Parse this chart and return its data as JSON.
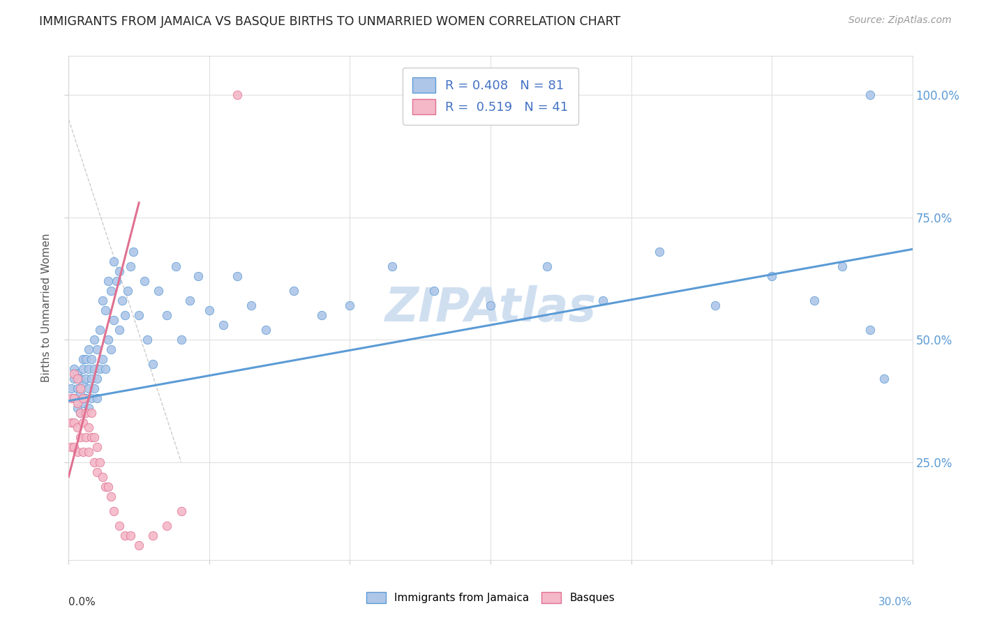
{
  "title": "IMMIGRANTS FROM JAMAICA VS BASQUE BIRTHS TO UNMARRIED WOMEN CORRELATION CHART",
  "source": "Source: ZipAtlas.com",
  "ylabel": "Births to Unmarried Women",
  "legend1_R": "0.408",
  "legend1_N": "81",
  "legend2_R": "0.519",
  "legend2_N": "41",
  "blue_scatter_color": "#aec6e8",
  "blue_edge_color": "#5b9bd5",
  "pink_scatter_color": "#f4b8c8",
  "pink_edge_color": "#e07090",
  "blue_line_color": "#5b9bd5",
  "pink_line_color": "#e07090",
  "legend_text_color": "#4472c4",
  "watermark_color": "#d0dff0",
  "right_tick_color": "#5b9bd5",
  "xlim": [
    0,
    0.3
  ],
  "ylim": [
    0.05,
    1.08
  ],
  "xticks": [
    0.0,
    0.05,
    0.1,
    0.15,
    0.2,
    0.25,
    0.3
  ],
  "yticks": [
    0.25,
    0.5,
    0.75,
    1.0
  ],
  "blue_trend_x0": 0.0,
  "blue_trend_y0": 0.375,
  "blue_trend_x1": 0.3,
  "blue_trend_y1": 0.685,
  "pink_trend_x0": 0.0,
  "pink_trend_y0": 0.22,
  "pink_trend_x1": 0.025,
  "pink_trend_y1": 0.78,
  "blue_x": [
    0.001,
    0.002,
    0.002,
    0.002,
    0.003,
    0.003,
    0.003,
    0.004,
    0.004,
    0.004,
    0.005,
    0.005,
    0.005,
    0.005,
    0.006,
    0.006,
    0.006,
    0.007,
    0.007,
    0.007,
    0.007,
    0.008,
    0.008,
    0.008,
    0.009,
    0.009,
    0.009,
    0.01,
    0.01,
    0.01,
    0.011,
    0.011,
    0.012,
    0.012,
    0.013,
    0.013,
    0.014,
    0.014,
    0.015,
    0.015,
    0.016,
    0.016,
    0.017,
    0.018,
    0.018,
    0.019,
    0.02,
    0.021,
    0.022,
    0.023,
    0.025,
    0.027,
    0.028,
    0.03,
    0.032,
    0.035,
    0.038,
    0.04,
    0.043,
    0.046,
    0.05,
    0.055,
    0.06,
    0.065,
    0.07,
    0.08,
    0.09,
    0.1,
    0.115,
    0.13,
    0.15,
    0.17,
    0.19,
    0.21,
    0.23,
    0.25,
    0.265,
    0.275,
    0.285,
    0.29,
    0.285
  ],
  "blue_y": [
    0.4,
    0.38,
    0.42,
    0.44,
    0.36,
    0.4,
    0.43,
    0.35,
    0.39,
    0.42,
    0.37,
    0.41,
    0.44,
    0.46,
    0.38,
    0.42,
    0.46,
    0.36,
    0.4,
    0.44,
    0.48,
    0.38,
    0.42,
    0.46,
    0.4,
    0.44,
    0.5,
    0.38,
    0.42,
    0.48,
    0.44,
    0.52,
    0.46,
    0.58,
    0.44,
    0.56,
    0.5,
    0.62,
    0.48,
    0.6,
    0.54,
    0.66,
    0.62,
    0.52,
    0.64,
    0.58,
    0.55,
    0.6,
    0.65,
    0.68,
    0.55,
    0.62,
    0.5,
    0.45,
    0.6,
    0.55,
    0.65,
    0.5,
    0.58,
    0.63,
    0.56,
    0.53,
    0.63,
    0.57,
    0.52,
    0.6,
    0.55,
    0.57,
    0.65,
    0.6,
    0.57,
    0.65,
    0.58,
    0.68,
    0.57,
    0.63,
    0.58,
    0.65,
    0.52,
    0.42,
    1.0
  ],
  "pink_x": [
    0.001,
    0.001,
    0.001,
    0.002,
    0.002,
    0.002,
    0.002,
    0.003,
    0.003,
    0.003,
    0.003,
    0.004,
    0.004,
    0.004,
    0.005,
    0.005,
    0.005,
    0.006,
    0.006,
    0.007,
    0.007,
    0.008,
    0.008,
    0.009,
    0.009,
    0.01,
    0.01,
    0.011,
    0.012,
    0.013,
    0.014,
    0.015,
    0.016,
    0.018,
    0.02,
    0.022,
    0.025,
    0.03,
    0.035,
    0.04,
    0.06
  ],
  "pink_y": [
    0.38,
    0.33,
    0.28,
    0.43,
    0.38,
    0.33,
    0.28,
    0.42,
    0.37,
    0.32,
    0.27,
    0.4,
    0.35,
    0.3,
    0.38,
    0.33,
    0.27,
    0.35,
    0.3,
    0.32,
    0.27,
    0.35,
    0.3,
    0.3,
    0.25,
    0.28,
    0.23,
    0.25,
    0.22,
    0.2,
    0.2,
    0.18,
    0.15,
    0.12,
    0.1,
    0.1,
    0.08,
    0.1,
    0.12,
    0.15,
    1.0
  ]
}
